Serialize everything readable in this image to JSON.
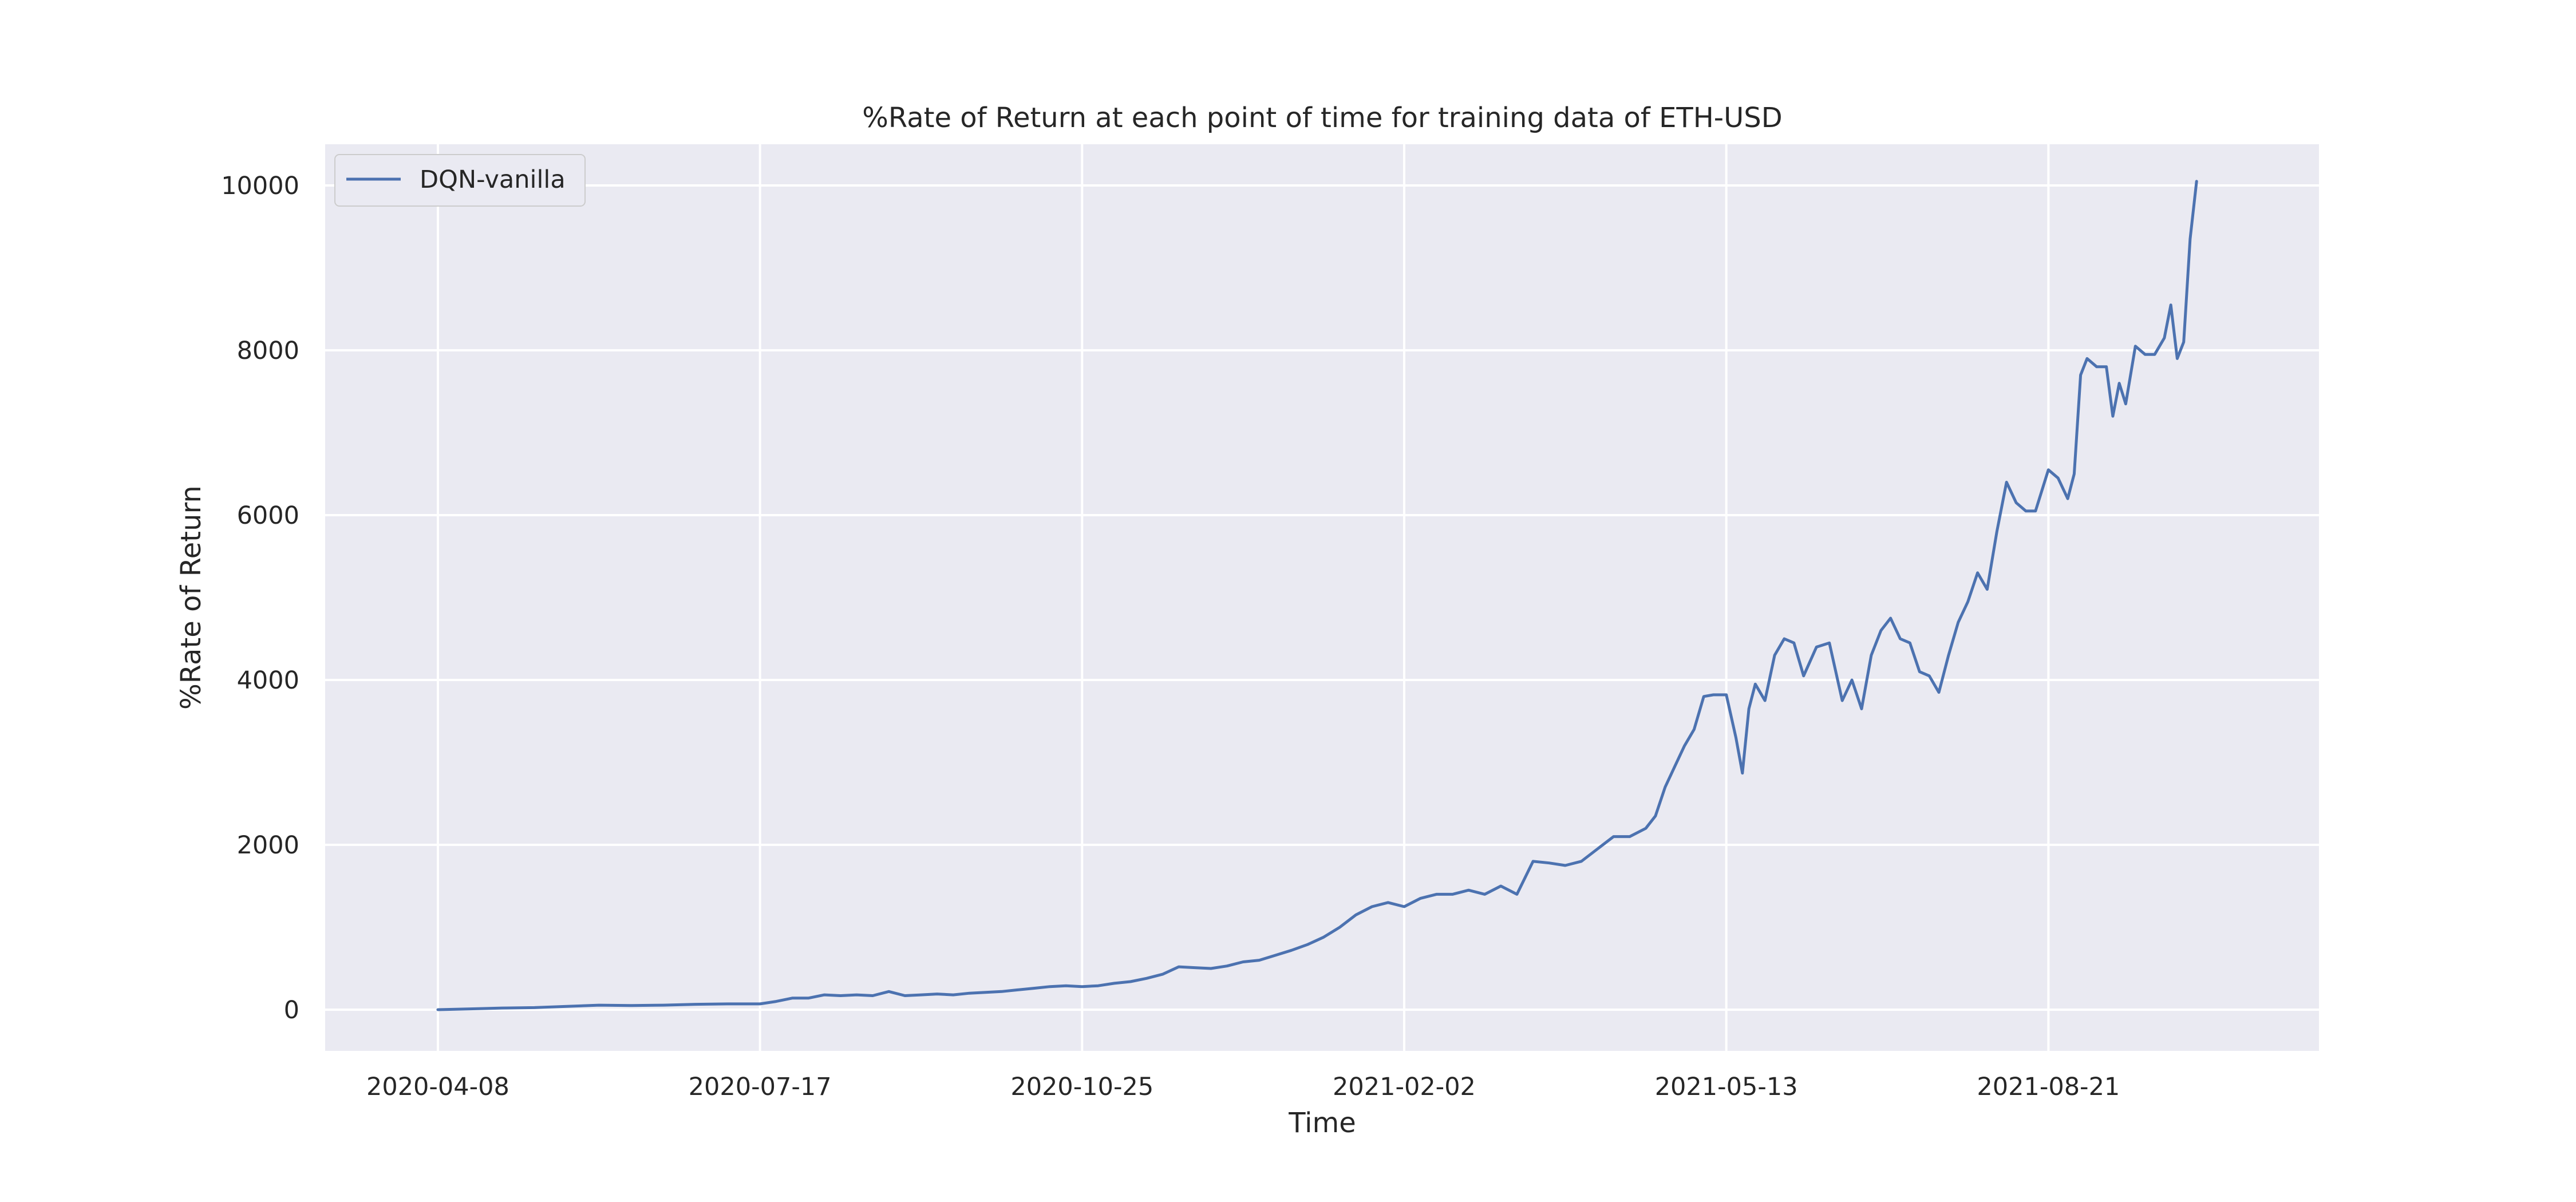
{
  "chart_data": {
    "type": "line",
    "title": "%Rate of Return at each point of time for training data of ETH-USD",
    "xlabel": "Time",
    "ylabel": "%Rate of Return",
    "x_ticks": [
      "2020-04-08",
      "2020-07-17",
      "2020-10-25",
      "2021-02-02",
      "2021-05-13",
      "2021-08-21"
    ],
    "x_range": [
      "2020-03-04",
      "2021-11-13"
    ],
    "y_ticks": [
      0,
      2000,
      4000,
      6000,
      8000,
      10000
    ],
    "ylim": [
      -500,
      10500
    ],
    "grid": true,
    "legend_position": "upper-left",
    "colors": {
      "line": "#4c72b0",
      "background": "#eaeaf2",
      "grid": "#ffffff"
    },
    "series": [
      {
        "name": "DQN-vanilla",
        "x": [
          "2020-04-08",
          "2020-04-18",
          "2020-04-28",
          "2020-05-08",
          "2020-05-18",
          "2020-05-28",
          "2020-06-07",
          "2020-06-17",
          "2020-06-27",
          "2020-07-07",
          "2020-07-17",
          "2020-07-22",
          "2020-07-27",
          "2020-08-01",
          "2020-08-06",
          "2020-08-11",
          "2020-08-16",
          "2020-08-21",
          "2020-08-26",
          "2020-08-31",
          "2020-09-05",
          "2020-09-10",
          "2020-09-15",
          "2020-09-20",
          "2020-09-25",
          "2020-09-30",
          "2020-10-05",
          "2020-10-10",
          "2020-10-15",
          "2020-10-20",
          "2020-10-25",
          "2020-10-30",
          "2020-11-04",
          "2020-11-09",
          "2020-11-14",
          "2020-11-19",
          "2020-11-24",
          "2020-11-29",
          "2020-12-04",
          "2020-12-09",
          "2020-12-14",
          "2020-12-19",
          "2020-12-24",
          "2020-12-29",
          "2021-01-03",
          "2021-01-08",
          "2021-01-13",
          "2021-01-18",
          "2021-01-23",
          "2021-01-28",
          "2021-02-02",
          "2021-02-07",
          "2021-02-12",
          "2021-02-17",
          "2021-02-22",
          "2021-02-27",
          "2021-03-04",
          "2021-03-09",
          "2021-03-14",
          "2021-03-19",
          "2021-03-24",
          "2021-03-29",
          "2021-04-03",
          "2021-04-08",
          "2021-04-13",
          "2021-04-18",
          "2021-04-21",
          "2021-04-24",
          "2021-04-27",
          "2021-04-30",
          "2021-05-03",
          "2021-05-06",
          "2021-05-09",
          "2021-05-13",
          "2021-05-16",
          "2021-05-18",
          "2021-05-20",
          "2021-05-22",
          "2021-05-25",
          "2021-05-28",
          "2021-05-31",
          "2021-06-03",
          "2021-06-06",
          "2021-06-10",
          "2021-06-14",
          "2021-06-18",
          "2021-06-21",
          "2021-06-24",
          "2021-06-27",
          "2021-06-30",
          "2021-07-03",
          "2021-07-06",
          "2021-07-09",
          "2021-07-12",
          "2021-07-15",
          "2021-07-18",
          "2021-07-21",
          "2021-07-24",
          "2021-07-27",
          "2021-07-30",
          "2021-08-02",
          "2021-08-05",
          "2021-08-08",
          "2021-08-11",
          "2021-08-14",
          "2021-08-17",
          "2021-08-21",
          "2021-08-24",
          "2021-08-27",
          "2021-08-29",
          "2021-08-31",
          "2021-09-02",
          "2021-09-05",
          "2021-09-08",
          "2021-09-10",
          "2021-09-12",
          "2021-09-14",
          "2021-09-17",
          "2021-09-20",
          "2021-09-23",
          "2021-09-26",
          "2021-09-28",
          "2021-09-30",
          "2021-10-02",
          "2021-10-04",
          "2021-10-06"
        ],
        "values": [
          0,
          10,
          20,
          25,
          40,
          55,
          50,
          55,
          65,
          70,
          70,
          100,
          140,
          140,
          180,
          170,
          180,
          170,
          220,
          170,
          180,
          190,
          180,
          200,
          210,
          220,
          240,
          260,
          280,
          290,
          280,
          290,
          320,
          340,
          380,
          430,
          520,
          510,
          500,
          530,
          580,
          600,
          660,
          720,
          790,
          880,
          1000,
          1150,
          1250,
          1300,
          1250,
          1350,
          1400,
          1400,
          1450,
          1400,
          1500,
          1400,
          1800,
          1780,
          1750,
          1800,
          1950,
          2100,
          2100,
          2200,
          2350,
          2700,
          2950,
          3200,
          3400,
          3800,
          3820,
          3820,
          3300,
          2870,
          3650,
          3950,
          3750,
          4300,
          4500,
          4450,
          4050,
          4400,
          4450,
          3750,
          4000,
          3650,
          4300,
          4600,
          4750,
          4500,
          4450,
          4100,
          4050,
          3850,
          4300,
          4700,
          4950,
          5300,
          5100,
          5800,
          6400,
          6150,
          6050,
          6050,
          6550,
          6450,
          6200,
          6500,
          7700,
          7900,
          7800,
          7800,
          7200,
          7600,
          7350,
          8050,
          7950,
          7950,
          8150,
          8550,
          7900,
          8100,
          9350,
          10050
        ]
      }
    ]
  }
}
